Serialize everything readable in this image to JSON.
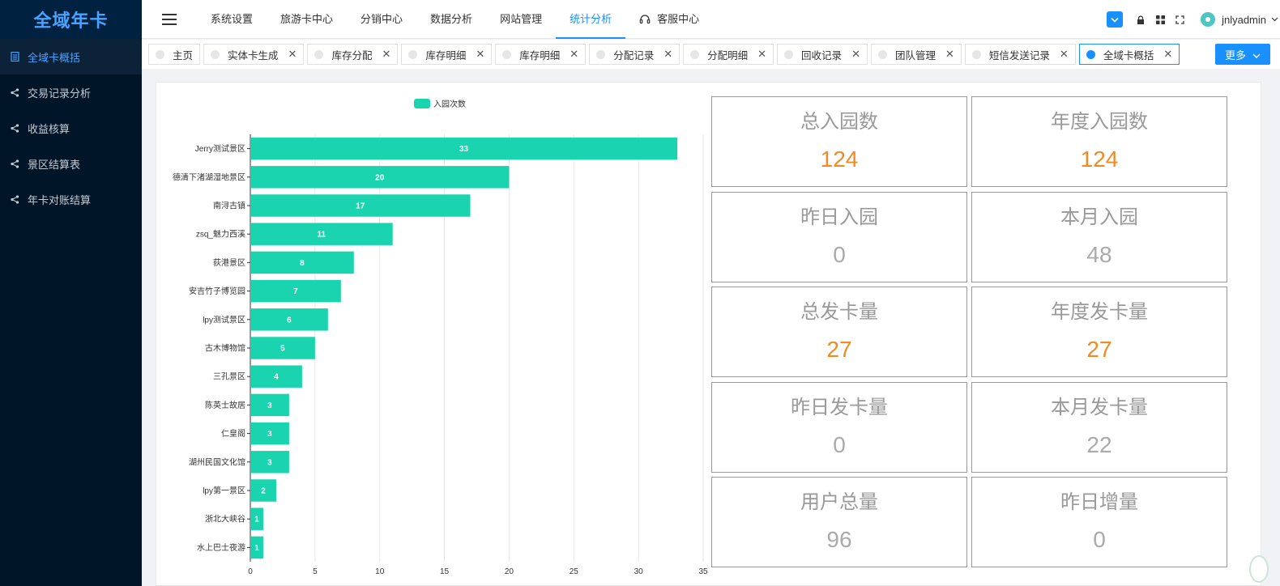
{
  "app": {
    "logo": "全域年卡"
  },
  "sidebar": {
    "items": [
      {
        "label": "全域卡概括",
        "icon": "document-icon",
        "active": true
      },
      {
        "label": "交易记录分析",
        "icon": "share-icon"
      },
      {
        "label": "收益核算",
        "icon": "share-icon"
      },
      {
        "label": "景区结算表",
        "icon": "share-icon"
      },
      {
        "label": "年卡对账结算",
        "icon": "share-icon"
      }
    ]
  },
  "header": {
    "nav": [
      {
        "label": "系统设置"
      },
      {
        "label": "旅游卡中心"
      },
      {
        "label": "分销中心"
      },
      {
        "label": "数据分析"
      },
      {
        "label": "网站管理"
      },
      {
        "label": "统计分析",
        "active": true
      },
      {
        "label": "客服中心",
        "icon": "headset-icon"
      }
    ],
    "user": {
      "name": "jnlyadmin"
    }
  },
  "tabs": {
    "items": [
      {
        "label": "主页",
        "closable": false
      },
      {
        "label": "实体卡生成",
        "closable": true
      },
      {
        "label": "库存分配",
        "closable": true
      },
      {
        "label": "库存明细",
        "closable": true
      },
      {
        "label": "库存明细",
        "closable": true
      },
      {
        "label": "分配记录",
        "closable": true
      },
      {
        "label": "分配明细",
        "closable": true
      },
      {
        "label": "回收记录",
        "closable": true
      },
      {
        "label": "团队管理",
        "closable": true
      },
      {
        "label": "短信发送记录",
        "closable": true
      },
      {
        "label": "全域卡概括",
        "closable": true,
        "active": true
      }
    ],
    "close_glyph": "✕",
    "more_label": "更多"
  },
  "chart_data": {
    "type": "bar",
    "orientation": "horizontal",
    "categories": [
      "Jerry测试景区",
      "德清下渚湖湿地景区",
      "南浔古镇",
      "zsq_魅力西溪",
      "荻港景区",
      "安吉竹子博览园",
      "lpy测试景区",
      "古木博物馆",
      "三孔景区",
      "陈英士故居",
      "仁皇阁",
      "湖州民国文化馆",
      "lpy第一景区",
      "浙北大峡谷",
      "水上巴士夜游"
    ],
    "series": [
      {
        "name": "入园次数",
        "values": [
          33,
          20,
          17,
          11,
          8,
          7,
          6,
          5,
          4,
          3,
          3,
          3,
          2,
          1,
          1
        ]
      }
    ],
    "xlim": [
      0,
      35
    ],
    "xticks": [
      0,
      5,
      10,
      15,
      20,
      25,
      30,
      35
    ],
    "grid": true,
    "legend": "top",
    "color": "#19d4ae"
  },
  "stats": [
    {
      "label": "总入园数",
      "value": "124",
      "color": "orange"
    },
    {
      "label": "年度入园数",
      "value": "124",
      "color": "orange"
    },
    {
      "label": "昨日入园",
      "value": "0",
      "color": "gray"
    },
    {
      "label": "本月入园",
      "value": "48",
      "color": "gray"
    },
    {
      "label": "总发卡量",
      "value": "27",
      "color": "orange"
    },
    {
      "label": "年度发卡量",
      "value": "27",
      "color": "orange"
    },
    {
      "label": "昨日发卡量",
      "value": "0",
      "color": "gray"
    },
    {
      "label": "本月发卡量",
      "value": "22",
      "color": "gray"
    },
    {
      "label": "用户总量",
      "value": "96",
      "color": "gray"
    },
    {
      "label": "昨日增量",
      "value": "0",
      "color": "gray"
    }
  ]
}
